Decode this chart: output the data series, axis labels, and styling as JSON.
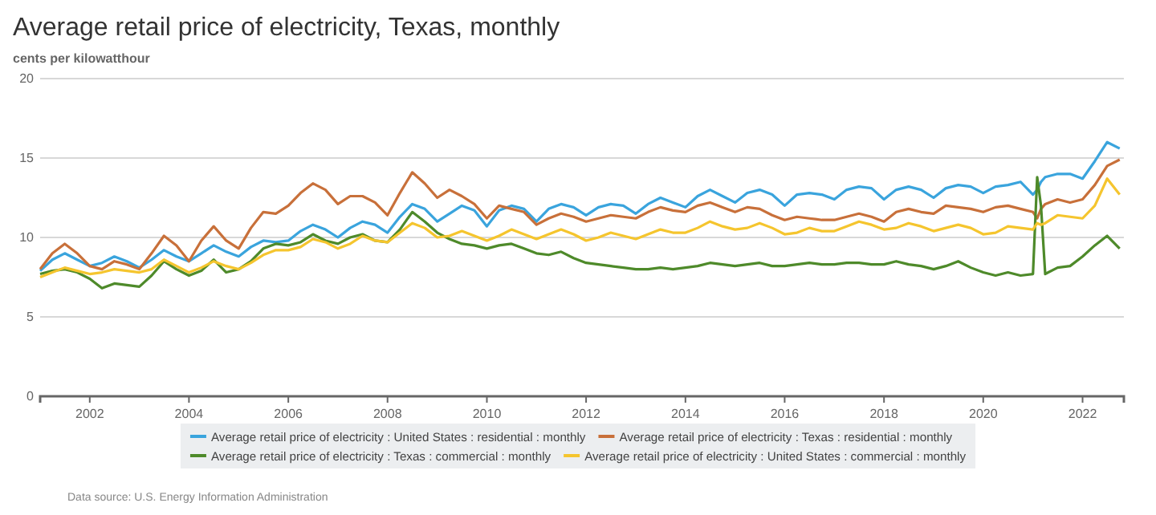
{
  "chart_data": {
    "type": "line",
    "title": "Average retail price of electricity, Texas, monthly",
    "ylabel": "cents per kilowatthour",
    "annotations": [
      "Data source: U.S. Energy Information Administration"
    ],
    "x": [
      "2001-01",
      "2001-04",
      "2001-07",
      "2001-10",
      "2002-01",
      "2002-04",
      "2002-07",
      "2002-10",
      "2003-01",
      "2003-04",
      "2003-07",
      "2003-10",
      "2004-01",
      "2004-04",
      "2004-07",
      "2004-10",
      "2005-01",
      "2005-04",
      "2005-07",
      "2005-10",
      "2006-01",
      "2006-04",
      "2006-07",
      "2006-10",
      "2007-01",
      "2007-04",
      "2007-07",
      "2007-10",
      "2008-01",
      "2008-04",
      "2008-07",
      "2008-10",
      "2009-01",
      "2009-04",
      "2009-07",
      "2009-10",
      "2010-01",
      "2010-04",
      "2010-07",
      "2010-10",
      "2011-01",
      "2011-04",
      "2011-07",
      "2011-10",
      "2012-01",
      "2012-04",
      "2012-07",
      "2012-10",
      "2013-01",
      "2013-04",
      "2013-07",
      "2013-10",
      "2014-01",
      "2014-04",
      "2014-07",
      "2014-10",
      "2015-01",
      "2015-04",
      "2015-07",
      "2015-10",
      "2016-01",
      "2016-04",
      "2016-07",
      "2016-10",
      "2017-01",
      "2017-04",
      "2017-07",
      "2017-10",
      "2018-01",
      "2018-04",
      "2018-07",
      "2018-10",
      "2019-01",
      "2019-04",
      "2019-07",
      "2019-10",
      "2020-01",
      "2020-04",
      "2020-07",
      "2020-10",
      "2021-01",
      "2021-02",
      "2021-03",
      "2021-04",
      "2021-07",
      "2021-10",
      "2022-01",
      "2022-04",
      "2022-07",
      "2022-10"
    ],
    "series": [
      {
        "name": "Average retail price of electricity : United States : residential : monthly",
        "color": "#3aa4dd",
        "values": [
          7.9,
          8.6,
          9.0,
          8.6,
          8.2,
          8.4,
          8.8,
          8.5,
          8.1,
          8.6,
          9.2,
          8.8,
          8.5,
          9.0,
          9.5,
          9.1,
          8.8,
          9.4,
          9.8,
          9.7,
          9.8,
          10.4,
          10.8,
          10.5,
          10.0,
          10.6,
          11.0,
          10.8,
          10.3,
          11.3,
          12.1,
          11.8,
          11.0,
          11.5,
          12.0,
          11.7,
          10.7,
          11.7,
          12.0,
          11.8,
          11.0,
          11.8,
          12.1,
          11.9,
          11.4,
          11.9,
          12.1,
          12.0,
          11.5,
          12.1,
          12.5,
          12.2,
          11.9,
          12.6,
          13.0,
          12.6,
          12.2,
          12.8,
          13.0,
          12.7,
          12.0,
          12.7,
          12.8,
          12.7,
          12.4,
          13.0,
          13.2,
          13.1,
          12.4,
          13.0,
          13.2,
          13.0,
          12.5,
          13.1,
          13.3,
          13.2,
          12.8,
          13.2,
          13.3,
          13.5,
          12.7,
          13.0,
          13.5,
          13.8,
          14.0,
          14.0,
          13.7,
          14.8,
          16.0,
          15.6
        ]
      },
      {
        "name": "Average retail price of electricity : Texas : residential : monthly",
        "color": "#c8703a",
        "values": [
          8.0,
          9.0,
          9.6,
          9.0,
          8.2,
          8.0,
          8.5,
          8.3,
          8.0,
          9.0,
          10.1,
          9.5,
          8.5,
          9.8,
          10.7,
          9.8,
          9.3,
          10.6,
          11.6,
          11.5,
          12.0,
          12.8,
          13.4,
          13.0,
          12.1,
          12.6,
          12.6,
          12.2,
          11.4,
          12.8,
          14.1,
          13.4,
          12.5,
          13.0,
          12.6,
          12.1,
          11.2,
          12.0,
          11.8,
          11.6,
          10.8,
          11.2,
          11.5,
          11.3,
          11.0,
          11.2,
          11.4,
          11.3,
          11.2,
          11.6,
          11.9,
          11.7,
          11.6,
          12.0,
          12.2,
          11.9,
          11.6,
          11.9,
          11.8,
          11.4,
          11.1,
          11.3,
          11.2,
          11.1,
          11.1,
          11.3,
          11.5,
          11.3,
          11.0,
          11.6,
          11.8,
          11.6,
          11.5,
          12.0,
          11.9,
          11.8,
          11.6,
          11.9,
          12.0,
          11.8,
          11.6,
          11.2,
          11.8,
          12.1,
          12.4,
          12.2,
          12.4,
          13.3,
          14.5,
          14.9
        ]
      },
      {
        "name": "Average retail price of electricity : Texas : commercial : monthly",
        "color": "#4e8a2a",
        "values": [
          7.7,
          7.9,
          8.0,
          7.8,
          7.4,
          6.8,
          7.1,
          7.0,
          6.9,
          7.6,
          8.5,
          8.0,
          7.6,
          7.9,
          8.6,
          7.8,
          8.0,
          8.5,
          9.3,
          9.6,
          9.5,
          9.7,
          10.2,
          9.8,
          9.6,
          10.0,
          10.2,
          9.8,
          9.7,
          10.5,
          11.6,
          11.0,
          10.3,
          9.9,
          9.6,
          9.5,
          9.3,
          9.5,
          9.6,
          9.3,
          9.0,
          8.9,
          9.1,
          8.7,
          8.4,
          8.3,
          8.2,
          8.1,
          8.0,
          8.0,
          8.1,
          8.0,
          8.1,
          8.2,
          8.4,
          8.3,
          8.2,
          8.3,
          8.4,
          8.2,
          8.2,
          8.3,
          8.4,
          8.3,
          8.3,
          8.4,
          8.4,
          8.3,
          8.3,
          8.5,
          8.3,
          8.2,
          8.0,
          8.2,
          8.5,
          8.1,
          7.8,
          7.6,
          7.8,
          7.6,
          7.7,
          13.8,
          12.0,
          7.7,
          8.1,
          8.2,
          8.8,
          9.5,
          10.1,
          9.3
        ]
      },
      {
        "name": "Average retail price of electricity : United States : commercial : monthly",
        "color": "#f5c52e",
        "values": [
          7.5,
          7.8,
          8.1,
          7.9,
          7.7,
          7.8,
          8.0,
          7.9,
          7.8,
          8.0,
          8.6,
          8.2,
          7.8,
          8.1,
          8.5,
          8.2,
          8.0,
          8.4,
          8.9,
          9.2,
          9.2,
          9.4,
          9.9,
          9.7,
          9.3,
          9.6,
          10.1,
          9.8,
          9.7,
          10.3,
          10.9,
          10.6,
          10.0,
          10.1,
          10.4,
          10.1,
          9.8,
          10.1,
          10.5,
          10.2,
          9.9,
          10.2,
          10.5,
          10.2,
          9.8,
          10.0,
          10.3,
          10.1,
          9.9,
          10.2,
          10.5,
          10.3,
          10.3,
          10.6,
          11.0,
          10.7,
          10.5,
          10.6,
          10.9,
          10.6,
          10.2,
          10.3,
          10.6,
          10.4,
          10.4,
          10.7,
          11.0,
          10.8,
          10.5,
          10.6,
          10.9,
          10.7,
          10.4,
          10.6,
          10.8,
          10.6,
          10.2,
          10.3,
          10.7,
          10.6,
          10.5,
          10.9,
          10.8,
          10.9,
          11.4,
          11.3,
          11.2,
          12.0,
          13.7,
          12.7
        ]
      }
    ],
    "xlim": [
      "2001-01",
      "2022-11"
    ],
    "xticks": [
      {
        "value": "2002-01",
        "label": "2002"
      },
      {
        "value": "2004-01",
        "label": "2004"
      },
      {
        "value": "2006-01",
        "label": "2006"
      },
      {
        "value": "2008-01",
        "label": "2008"
      },
      {
        "value": "2010-01",
        "label": "2010"
      },
      {
        "value": "2012-01",
        "label": "2012"
      },
      {
        "value": "2014-01",
        "label": "2014"
      },
      {
        "value": "2016-01",
        "label": "2016"
      },
      {
        "value": "2018-01",
        "label": "2018"
      },
      {
        "value": "2020-01",
        "label": "2020"
      },
      {
        "value": "2022-01",
        "label": "2022"
      }
    ],
    "ylim": [
      0,
      20
    ],
    "yticks": [
      0,
      5,
      10,
      15,
      20
    ],
    "grid": "y",
    "legend": "bottom",
    "marker": "none",
    "line_style": "solid"
  }
}
